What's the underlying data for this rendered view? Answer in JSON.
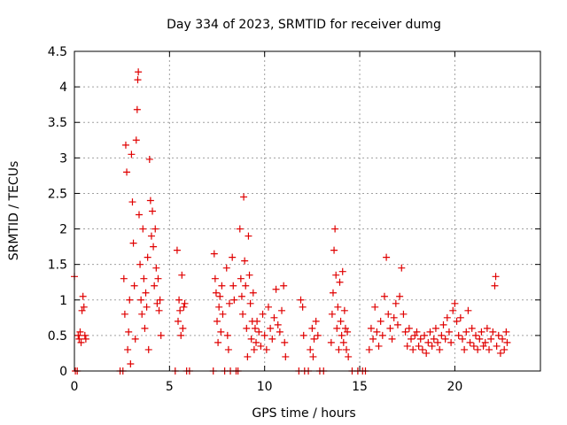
{
  "chart_data": {
    "type": "scatter",
    "title": "Day 334 of 2023, SRMTID for receiver dumg",
    "xlabel": "GPS time / hours",
    "ylabel": "SRMTID / TECUs",
    "xlim": [
      0,
      24.5
    ],
    "ylim": [
      0,
      4.5
    ],
    "xticks": [
      0,
      5,
      10,
      15,
      20
    ],
    "yticks": [
      0,
      0.5,
      1,
      1.5,
      2,
      2.5,
      3,
      3.5,
      4,
      4.5
    ],
    "ytick_labels": [
      "0",
      "0.5",
      "1",
      "1.5",
      "2",
      "2.5",
      "3",
      "3.5",
      "4",
      "4.5"
    ],
    "grid": true,
    "marker": "+",
    "marker_color": "#e00000",
    "series": [
      {
        "name": "SRMTID",
        "points": [
          [
            0.0,
            1.33
          ],
          [
            0.05,
            0.0
          ],
          [
            0.15,
            0.0
          ],
          [
            0.2,
            0.5
          ],
          [
            0.25,
            0.45
          ],
          [
            0.3,
            0.55
          ],
          [
            0.35,
            0.4
          ],
          [
            0.4,
            0.85
          ],
          [
            0.45,
            1.05
          ],
          [
            0.5,
            0.9
          ],
          [
            0.55,
            0.5
          ],
          [
            0.6,
            0.45
          ],
          [
            2.4,
            0.0
          ],
          [
            2.55,
            0.0
          ],
          [
            2.6,
            1.3
          ],
          [
            2.65,
            0.8
          ],
          [
            2.7,
            3.18
          ],
          [
            2.75,
            2.8
          ],
          [
            2.8,
            0.3
          ],
          [
            2.85,
            0.55
          ],
          [
            2.9,
            1.0
          ],
          [
            2.95,
            0.1
          ],
          [
            3.0,
            3.05
          ],
          [
            3.05,
            2.38
          ],
          [
            3.1,
            1.8
          ],
          [
            3.15,
            1.2
          ],
          [
            3.2,
            0.45
          ],
          [
            3.25,
            3.25
          ],
          [
            3.3,
            3.68
          ],
          [
            3.33,
            4.1
          ],
          [
            3.36,
            4.21
          ],
          [
            3.4,
            2.2
          ],
          [
            3.45,
            1.5
          ],
          [
            3.5,
            1.0
          ],
          [
            3.55,
            0.8
          ],
          [
            3.6,
            2.0
          ],
          [
            3.65,
            1.3
          ],
          [
            3.7,
            0.6
          ],
          [
            3.75,
            1.1
          ],
          [
            3.8,
            0.9
          ],
          [
            3.85,
            1.6
          ],
          [
            3.9,
            0.3
          ],
          [
            3.95,
            2.98
          ],
          [
            4.0,
            2.4
          ],
          [
            4.05,
            1.9
          ],
          [
            4.1,
            2.25
          ],
          [
            4.15,
            1.75
          ],
          [
            4.2,
            1.2
          ],
          [
            4.25,
            2.0
          ],
          [
            4.3,
            1.45
          ],
          [
            4.35,
            0.95
          ],
          [
            4.4,
            1.3
          ],
          [
            4.45,
            0.85
          ],
          [
            4.5,
            1.0
          ],
          [
            4.55,
            0.5
          ],
          [
            5.3,
            0.0
          ],
          [
            5.4,
            1.7
          ],
          [
            5.45,
            0.7
          ],
          [
            5.5,
            1.0
          ],
          [
            5.55,
            0.85
          ],
          [
            5.6,
            0.5
          ],
          [
            5.65,
            1.35
          ],
          [
            5.7,
            0.6
          ],
          [
            5.75,
            0.9
          ],
          [
            5.8,
            0.95
          ],
          [
            5.9,
            0.0
          ],
          [
            6.05,
            0.0
          ],
          [
            7.3,
            0.0
          ],
          [
            7.35,
            1.65
          ],
          [
            7.4,
            1.3
          ],
          [
            7.45,
            1.1
          ],
          [
            7.5,
            0.7
          ],
          [
            7.55,
            0.4
          ],
          [
            7.6,
            0.9
          ],
          [
            7.65,
            1.05
          ],
          [
            7.7,
            0.55
          ],
          [
            7.75,
            1.2
          ],
          [
            7.8,
            0.8
          ],
          [
            7.9,
            0.0
          ],
          [
            8.0,
            1.45
          ],
          [
            8.05,
            0.5
          ],
          [
            8.1,
            0.3
          ],
          [
            8.15,
            0.95
          ],
          [
            8.2,
            0.0
          ],
          [
            8.3,
            1.6
          ],
          [
            8.35,
            1.2
          ],
          [
            8.4,
            1.0
          ],
          [
            8.5,
            0.0
          ],
          [
            8.6,
            0.0
          ],
          [
            8.7,
            2.0
          ],
          [
            8.75,
            1.3
          ],
          [
            8.8,
            1.05
          ],
          [
            8.85,
            0.8
          ],
          [
            8.9,
            2.45
          ],
          [
            8.95,
            1.55
          ],
          [
            9.0,
            1.2
          ],
          [
            9.05,
            0.6
          ],
          [
            9.1,
            0.2
          ],
          [
            9.15,
            1.9
          ],
          [
            9.2,
            1.35
          ],
          [
            9.25,
            0.95
          ],
          [
            9.3,
            0.45
          ],
          [
            9.35,
            0.7
          ],
          [
            9.4,
            1.1
          ],
          [
            9.45,
            0.3
          ],
          [
            9.5,
            0.6
          ],
          [
            9.55,
            0.4
          ],
          [
            9.6,
            0.7
          ],
          [
            9.7,
            0.55
          ],
          [
            9.8,
            0.35
          ],
          [
            9.9,
            0.8
          ],
          [
            10.0,
            0.5
          ],
          [
            10.1,
            0.3
          ],
          [
            10.2,
            0.9
          ],
          [
            10.3,
            0.6
          ],
          [
            10.4,
            0.45
          ],
          [
            10.5,
            0.75
          ],
          [
            10.6,
            1.15
          ],
          [
            10.7,
            0.65
          ],
          [
            10.8,
            0.55
          ],
          [
            10.9,
            0.85
          ],
          [
            11.0,
            1.2
          ],
          [
            11.05,
            0.4
          ],
          [
            11.1,
            0.2
          ],
          [
            11.8,
            0.0
          ],
          [
            11.9,
            1.0
          ],
          [
            12.0,
            0.9
          ],
          [
            12.05,
            0.5
          ],
          [
            12.1,
            0.0
          ],
          [
            12.3,
            0.0
          ],
          [
            12.4,
            0.3
          ],
          [
            12.5,
            0.6
          ],
          [
            12.55,
            0.2
          ],
          [
            12.6,
            0.45
          ],
          [
            12.7,
            0.7
          ],
          [
            12.8,
            0.5
          ],
          [
            12.9,
            0.0
          ],
          [
            13.1,
            0.0
          ],
          [
            13.5,
            0.4
          ],
          [
            13.55,
            0.8
          ],
          [
            13.6,
            1.1
          ],
          [
            13.65,
            1.7
          ],
          [
            13.7,
            2.0
          ],
          [
            13.75,
            1.35
          ],
          [
            13.8,
            0.6
          ],
          [
            13.85,
            0.9
          ],
          [
            13.9,
            0.3
          ],
          [
            13.95,
            1.25
          ],
          [
            14.0,
            0.7
          ],
          [
            14.05,
            0.5
          ],
          [
            14.1,
            1.4
          ],
          [
            14.15,
            0.4
          ],
          [
            14.2,
            0.85
          ],
          [
            14.25,
            0.6
          ],
          [
            14.3,
            0.3
          ],
          [
            14.35,
            0.55
          ],
          [
            14.4,
            0.2
          ],
          [
            14.6,
            0.0
          ],
          [
            14.9,
            0.0
          ],
          [
            15.15,
            0.0
          ],
          [
            15.3,
            0.0
          ],
          [
            15.5,
            0.3
          ],
          [
            15.6,
            0.6
          ],
          [
            15.7,
            0.45
          ],
          [
            15.8,
            0.9
          ],
          [
            15.9,
            0.55
          ],
          [
            16.0,
            0.35
          ],
          [
            16.1,
            0.7
          ],
          [
            16.2,
            0.5
          ],
          [
            16.3,
            1.05
          ],
          [
            16.4,
            1.6
          ],
          [
            16.5,
            0.8
          ],
          [
            16.6,
            0.6
          ],
          [
            16.7,
            0.45
          ],
          [
            16.8,
            0.75
          ],
          [
            16.9,
            0.95
          ],
          [
            17.0,
            0.65
          ],
          [
            17.1,
            1.05
          ],
          [
            17.2,
            1.45
          ],
          [
            17.3,
            0.8
          ],
          [
            17.4,
            0.55
          ],
          [
            17.5,
            0.35
          ],
          [
            17.6,
            0.6
          ],
          [
            17.7,
            0.45
          ],
          [
            17.8,
            0.3
          ],
          [
            17.9,
            0.5
          ],
          [
            18.0,
            0.55
          ],
          [
            18.1,
            0.35
          ],
          [
            18.2,
            0.45
          ],
          [
            18.3,
            0.3
          ],
          [
            18.4,
            0.5
          ],
          [
            18.5,
            0.25
          ],
          [
            18.6,
            0.4
          ],
          [
            18.7,
            0.55
          ],
          [
            18.8,
            0.35
          ],
          [
            18.9,
            0.45
          ],
          [
            19.0,
            0.6
          ],
          [
            19.1,
            0.4
          ],
          [
            19.2,
            0.3
          ],
          [
            19.3,
            0.5
          ],
          [
            19.4,
            0.65
          ],
          [
            19.5,
            0.45
          ],
          [
            19.6,
            0.75
          ],
          [
            19.7,
            0.55
          ],
          [
            19.8,
            0.4
          ],
          [
            19.9,
            0.85
          ],
          [
            20.0,
            0.95
          ],
          [
            20.1,
            0.7
          ],
          [
            20.2,
            0.5
          ],
          [
            20.3,
            0.75
          ],
          [
            20.4,
            0.45
          ],
          [
            20.5,
            0.3
          ],
          [
            20.6,
            0.55
          ],
          [
            20.7,
            0.85
          ],
          [
            20.8,
            0.4
          ],
          [
            20.9,
            0.6
          ],
          [
            21.0,
            0.35
          ],
          [
            21.1,
            0.5
          ],
          [
            21.2,
            0.3
          ],
          [
            21.3,
            0.45
          ],
          [
            21.4,
            0.55
          ],
          [
            21.5,
            0.35
          ],
          [
            21.6,
            0.4
          ],
          [
            21.7,
            0.6
          ],
          [
            21.8,
            0.3
          ],
          [
            21.9,
            0.45
          ],
          [
            22.0,
            0.55
          ],
          [
            22.1,
            1.2
          ],
          [
            22.15,
            1.33
          ],
          [
            22.2,
            0.35
          ],
          [
            22.3,
            0.5
          ],
          [
            22.4,
            0.25
          ],
          [
            22.5,
            0.45
          ],
          [
            22.6,
            0.3
          ],
          [
            22.7,
            0.55
          ],
          [
            22.75,
            0.4
          ]
        ]
      }
    ]
  }
}
